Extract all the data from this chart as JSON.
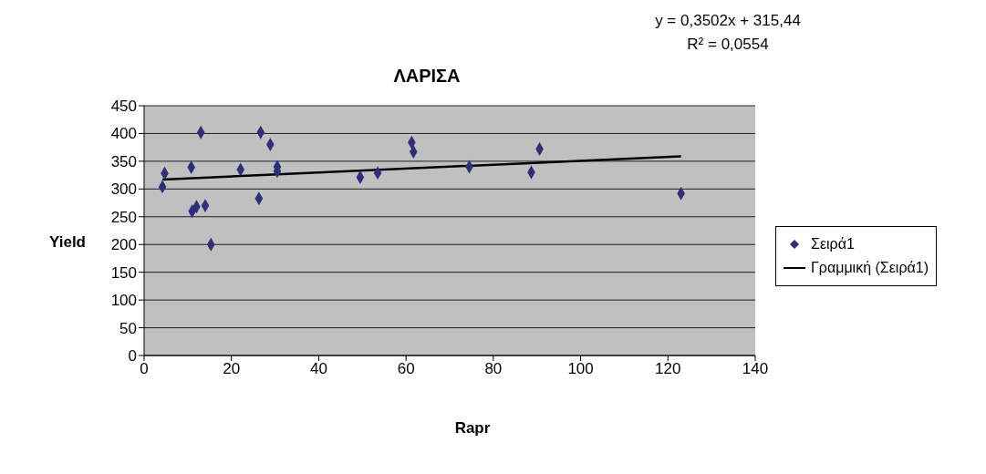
{
  "chart_data": {
    "type": "scatter",
    "title": "ΛΑΡΙΣΑ",
    "xlabel": "Rapr",
    "ylabel": "Yield",
    "annotations": [
      "y = 0,3502x + 315,44",
      "R² = 0,0554"
    ],
    "xlim": [
      0,
      140
    ],
    "xticks": [
      0,
      20,
      40,
      60,
      80,
      100,
      120,
      140
    ],
    "ylim": [
      0,
      450
    ],
    "yticks": [
      0,
      50,
      100,
      150,
      200,
      250,
      300,
      350,
      400,
      450
    ],
    "grid": "y",
    "legend": "right",
    "series": [
      {
        "name": "Σειρά1",
        "marker": "diamond",
        "color": "#2e2e7a",
        "x": [
          4.7,
          4.2,
          10.8,
          13,
          11,
          12,
          14,
          15.3,
          22.1,
          26.3,
          26.7,
          28.9,
          30.5,
          30.5,
          49.5,
          53.5,
          61.3,
          61.7,
          74.5,
          88.7,
          90.6,
          123
        ],
        "values": [
          328,
          304,
          339,
          402,
          260,
          268,
          270,
          200,
          335,
          283,
          402,
          380,
          340,
          332,
          321,
          329,
          384,
          367,
          340,
          330,
          372,
          292
        ]
      },
      {
        "name": "Γραμμική (Σειρά1)",
        "type": "line",
        "color": "#000000",
        "x": [
          4.2,
          123
        ],
        "values": [
          317,
          359
        ]
      }
    ]
  }
}
